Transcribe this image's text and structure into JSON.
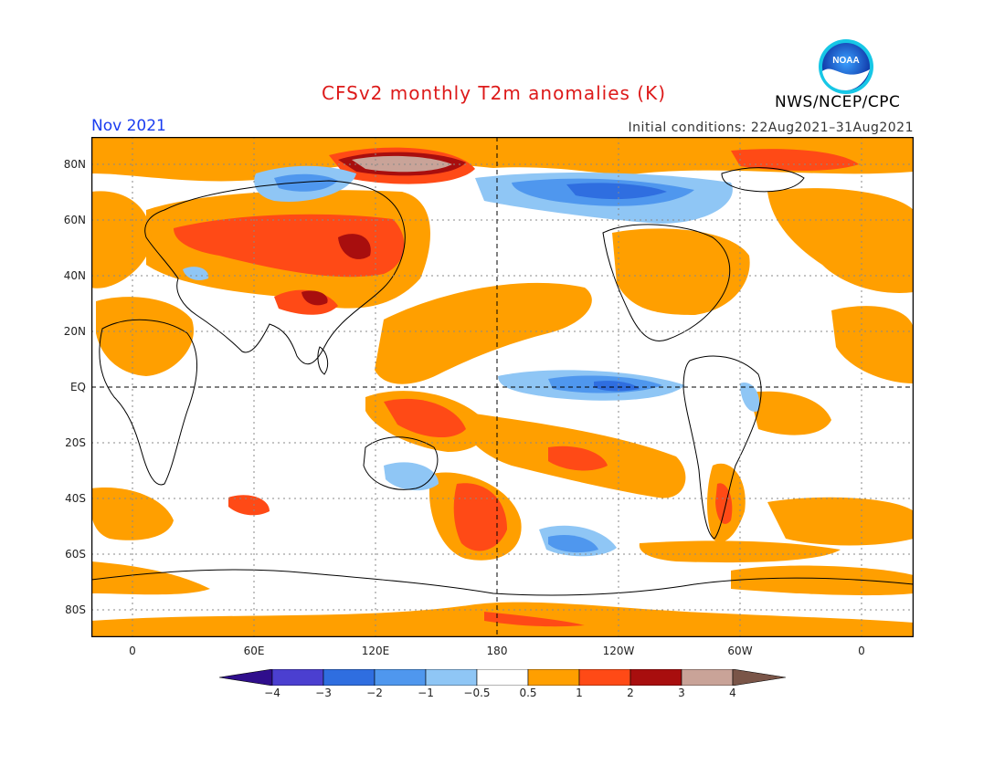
{
  "header": {
    "title": "CFSv2 monthly T2m anomalies (K)",
    "month": "Nov 2021",
    "initial_conditions": "Initial conditions: 22Aug2021–31Aug2021",
    "agency": "NWS/NCEP/CPC",
    "logo_text": "NOAA"
  },
  "map": {
    "lat_labels": [
      "80N",
      "60N",
      "40N",
      "20N",
      "EQ",
      "20S",
      "40S",
      "60S",
      "80S"
    ],
    "lon_labels": [
      "0",
      "60E",
      "120E",
      "180",
      "120W",
      "60W",
      "0"
    ]
  },
  "legend": {
    "labels": [
      "−4",
      "−3",
      "−2",
      "−1",
      "−0.5",
      "0.5",
      "1",
      "2",
      "3",
      "4"
    ],
    "colors": [
      "#2f0e8c",
      "#4b3fd0",
      "#2f6ee0",
      "#4f97ee",
      "#8fc6f5",
      "#ffffff",
      "#ff9f00",
      "#ff4a16",
      "#a80e0e",
      "#c9a398",
      "#7a5548"
    ]
  }
}
